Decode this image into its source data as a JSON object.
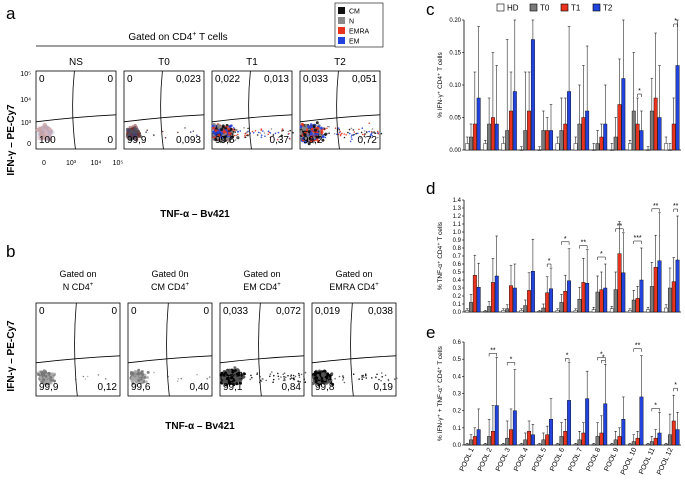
{
  "panels": {
    "a": {
      "letter": "a",
      "header": "Gated on CD4",
      "header_sup": "+",
      "header_tail": " T cells",
      "legend": [
        {
          "label": "CM",
          "color": "#111111"
        },
        {
          "label": "N",
          "color": "#8a8a8a"
        },
        {
          "label": "EMRA",
          "color": "#e8331f"
        },
        {
          "label": "EM",
          "color": "#2244dd"
        }
      ],
      "ylabel": "IFN-γ – PE-Cy7",
      "xlabel": "TNF-α – Bv421",
      "ytick_labels": [
        "10⁵",
        "10⁴",
        "10³",
        "0"
      ],
      "xtick_labels": [
        "0",
        "10³",
        "10⁴",
        "10⁵"
      ],
      "plots": [
        {
          "title": "NS",
          "ul": "0",
          "ur": "0",
          "ll": "100",
          "lr": "0"
        },
        {
          "title": "T0",
          "ul": "0",
          "ur": "0,023",
          "ll": "99,9",
          "lr": "0,093"
        },
        {
          "title": "T1",
          "ul": "0,022",
          "ur": "0,013",
          "ll": "99,6",
          "lr": "0,37"
        },
        {
          "title": "T2",
          "ul": "0,033",
          "ur": "0,051",
          "ll": "99,2",
          "lr": "0,72"
        }
      ]
    },
    "b": {
      "letter": "b",
      "ylabel": "IFN-γ – PE-Cy7",
      "xlabel": "TNF-α – Bv421",
      "plots": [
        {
          "title1": "Gated on",
          "title2": "N CD4",
          "sup": "+",
          "ul": "0",
          "ur": "0",
          "ll": "99,9",
          "lr": "0,12"
        },
        {
          "title1": "Gated 0n",
          "title2": "CM CD4",
          "sup": "+",
          "ul": "0",
          "ur": "0",
          "ll": "99,6",
          "lr": "0,40"
        },
        {
          "title1": "Gated on",
          "title2": "EM CD4",
          "sup": "+",
          "ul": "0,033",
          "ur": "0,072",
          "ll": "99,1",
          "lr": "0,84"
        },
        {
          "title1": "Gated on",
          "title2": "EMRA CD4",
          "sup": "+",
          "ul": "0,019",
          "ur": "0,038",
          "ll": "99,8",
          "lr": "0,19"
        }
      ]
    },
    "c": {
      "letter": "c",
      "ylabel": "% IFN-γ⁺ CD4⁺ T cells"
    },
    "d": {
      "letter": "d",
      "ylabel": "% TNF-α⁺ CD4⁺ T cells"
    },
    "e": {
      "letter": "e",
      "ylabel": "% IFN-γ⁺ + TNF-α⁺ CD4⁺ T cells"
    }
  },
  "chart_data": [
    {
      "id": "c",
      "type": "bar",
      "title": "",
      "ylabel": "% IFN-γ⁺ CD4⁺ T cells",
      "ylim": [
        0,
        0.2
      ],
      "yticks": [
        "0.00",
        "0.05",
        "0.10",
        "0.15",
        "0.20"
      ],
      "categories": [
        "POOL 1",
        "POOL 2",
        "POOL 3",
        "POOL 4",
        "POOL 5",
        "POOL 6",
        "POOL 7",
        "POOL 8",
        "POOL 9",
        "POOL 10",
        "POOL 11",
        "POOL 12"
      ],
      "legend": [
        "HD",
        "T0",
        "T1",
        "T2"
      ],
      "series": [
        {
          "name": "HD",
          "color": "#ffffff",
          "values": [
            0.01,
            0.01,
            0.01,
            0.0,
            0.0,
            0.01,
            0.01,
            0.0,
            0.0,
            0.01,
            0.0,
            0.01
          ]
        },
        {
          "name": "T0",
          "color": "#7a7a7a",
          "values": [
            0.02,
            0.04,
            0.03,
            0.03,
            0.03,
            0.03,
            0.04,
            0.01,
            0.02,
            0.06,
            0.06,
            0.0
          ]
        },
        {
          "name": "T1",
          "color": "#e8331f",
          "values": [
            0.04,
            0.05,
            0.06,
            0.06,
            0.03,
            0.04,
            0.05,
            0.02,
            0.07,
            0.04,
            0.08,
            0.04
          ]
        },
        {
          "name": "T2",
          "color": "#2244dd",
          "values": [
            0.08,
            0.04,
            0.09,
            0.17,
            0.03,
            0.09,
            0.06,
            0.04,
            0.11,
            0.03,
            0.05,
            0.13
          ]
        }
      ],
      "errors": [
        {
          "name": "HD",
          "values": [
            0.01,
            0.005,
            0.01,
            0.005,
            0.005,
            0.01,
            0.01,
            0.01,
            0.01,
            0.005,
            0.005,
            0.01
          ]
        },
        {
          "name": "T0",
          "values": [
            0.02,
            0.04,
            0.14,
            0.09,
            0.03,
            0.05,
            0.06,
            0.02,
            0.03,
            0.09,
            0.05,
            0.01
          ]
        },
        {
          "name": "T1",
          "values": [
            0.08,
            0.1,
            0.06,
            0.06,
            0.02,
            0.04,
            0.08,
            0.02,
            0.07,
            0.04,
            0.1,
            0.04
          ]
        },
        {
          "name": "T2",
          "values": [
            0.11,
            0.09,
            0.12,
            0.09,
            0.04,
            0.1,
            0.1,
            0.06,
            0.11,
            0.03,
            0.08,
            0.1
          ]
        }
      ],
      "significance": [
        {
          "pool": 10,
          "from": "T1",
          "to": "T2",
          "label": "*"
        },
        {
          "pool": 12,
          "from": "T1",
          "to": "T2",
          "label": "*"
        }
      ]
    },
    {
      "id": "d",
      "type": "bar",
      "title": "",
      "ylabel": "% TNF-α⁺ CD4⁺ T cells",
      "ylim": [
        0,
        1.4
      ],
      "yticks": [
        "0.0",
        "0.1",
        "0.2",
        "0.3",
        "0.4",
        "0.5",
        "0.6",
        "0.7",
        "0.8",
        "0.9",
        "1.0",
        "1.1",
        "1.2",
        "1.3",
        "1.4"
      ],
      "categories": [
        "POOL 1",
        "POOL 2",
        "POOL 3",
        "POOL 4",
        "POOL 5",
        "POOL 6",
        "POOL 7",
        "POOL 8",
        "POOL 9",
        "POOL 10",
        "POOL 11",
        "POOL 12"
      ],
      "legend": [
        "HD",
        "T0",
        "T1",
        "T2"
      ],
      "series": [
        {
          "name": "HD",
          "color": "#ffffff",
          "values": [
            0.02,
            0.01,
            0.02,
            0.02,
            0.01,
            0.02,
            0.02,
            0.03,
            0.04,
            0.02,
            0.03,
            0.05
          ]
        },
        {
          "name": "T0",
          "color": "#7a7a7a",
          "values": [
            0.12,
            0.07,
            0.04,
            0.08,
            0.05,
            0.12,
            0.16,
            0.25,
            0.28,
            0.15,
            0.32,
            0.3
          ]
        },
        {
          "name": "T1",
          "color": "#e8331f",
          "values": [
            0.46,
            0.37,
            0.33,
            0.27,
            0.24,
            0.26,
            0.37,
            0.28,
            0.73,
            0.17,
            0.56,
            0.38
          ]
        },
        {
          "name": "T2",
          "color": "#2244dd",
          "values": [
            0.31,
            0.45,
            0.3,
            0.51,
            0.29,
            0.39,
            0.36,
            0.3,
            0.49,
            0.4,
            0.64,
            0.65
          ]
        }
      ],
      "errors": [
        {
          "name": "HD",
          "values": [
            0.02,
            0.01,
            0.02,
            0.02,
            0.01,
            0.02,
            0.02,
            0.03,
            0.03,
            0.02,
            0.03,
            0.04
          ]
        },
        {
          "name": "T0",
          "values": [
            0.1,
            0.06,
            0.05,
            0.07,
            0.05,
            0.1,
            0.15,
            0.2,
            0.22,
            0.12,
            0.3,
            0.25
          ]
        },
        {
          "name": "T1",
          "values": [
            0.25,
            0.3,
            0.25,
            0.22,
            0.2,
            0.2,
            0.3,
            0.22,
            0.4,
            0.15,
            0.4,
            0.3
          ]
        },
        {
          "name": "T2",
          "values": [
            0.3,
            0.5,
            0.3,
            0.4,
            0.26,
            0.4,
            0.42,
            0.3,
            0.5,
            0.4,
            0.6,
            0.55
          ]
        }
      ],
      "significance": [
        {
          "pool": 5,
          "from": "T1",
          "to": "T2",
          "label": "*"
        },
        {
          "pool": 6,
          "from": "T0",
          "to": "T2",
          "label": "*"
        },
        {
          "pool": 7,
          "from": "T0",
          "to": "T2",
          "label": "**"
        },
        {
          "pool": 8,
          "from": "T0",
          "to": "T2",
          "label": "*"
        },
        {
          "pool": 9,
          "from": "T0",
          "to": "T2",
          "label": "**"
        },
        {
          "pool": 10,
          "from": "T0",
          "to": "T2",
          "label": "***"
        },
        {
          "pool": 11,
          "from": "T0",
          "to": "T2",
          "label": "**"
        },
        {
          "pool": 12,
          "from": "T1",
          "to": "T2",
          "label": "**"
        }
      ]
    },
    {
      "id": "e",
      "type": "bar",
      "title": "",
      "ylabel": "% IFN-γ⁺ + TNF-α⁺ CD4⁺ T cells",
      "ylim": [
        0,
        0.6
      ],
      "yticks": [
        "0.0",
        "0.1",
        "0.2",
        "0.3",
        "0.4",
        "0.5",
        "0.6"
      ],
      "categories": [
        "POOL 1",
        "POOL 2",
        "POOL 3",
        "POOL 4",
        "POOL 5",
        "POOL 6",
        "POOL 7",
        "POOL 8",
        "POOL 9",
        "POOL 10",
        "POOL 11",
        "POOL 12"
      ],
      "legend": [
        "HD",
        "T0",
        "T1",
        "T2"
      ],
      "series": [
        {
          "name": "HD",
          "color": "#ffffff",
          "values": [
            0.005,
            0.005,
            0.005,
            0.005,
            0.005,
            0.005,
            0.005,
            0.005,
            0.005,
            0.005,
            0.005,
            0.005
          ]
        },
        {
          "name": "T0",
          "color": "#7a7a7a",
          "values": [
            0.03,
            0.05,
            0.04,
            0.03,
            0.03,
            0.05,
            0.03,
            0.05,
            0.03,
            0.02,
            0.02,
            0.06
          ]
        },
        {
          "name": "T1",
          "color": "#e8331f",
          "values": [
            0.05,
            0.08,
            0.09,
            0.08,
            0.06,
            0.08,
            0.07,
            0.07,
            0.05,
            0.04,
            0.04,
            0.14
          ]
        },
        {
          "name": "T2",
          "color": "#2244dd",
          "values": [
            0.09,
            0.23,
            0.2,
            0.06,
            0.15,
            0.26,
            0.27,
            0.24,
            0.15,
            0.28,
            0.07,
            0.09
          ]
        }
      ],
      "errors": [
        {
          "name": "HD",
          "values": [
            0.005,
            0.005,
            0.005,
            0.005,
            0.005,
            0.005,
            0.005,
            0.005,
            0.005,
            0.005,
            0.005,
            0.005
          ]
        },
        {
          "name": "T0",
          "values": [
            0.03,
            0.1,
            0.1,
            0.04,
            0.04,
            0.08,
            0.05,
            0.08,
            0.05,
            0.04,
            0.03,
            0.12
          ]
        },
        {
          "name": "T1",
          "values": [
            0.05,
            0.15,
            0.12,
            0.06,
            0.05,
            0.07,
            0.06,
            0.1,
            0.05,
            0.04,
            0.05,
            0.15
          ]
        },
        {
          "name": "T2",
          "values": [
            0.12,
            0.28,
            0.24,
            0.06,
            0.12,
            0.22,
            0.16,
            0.23,
            0.13,
            0.24,
            0.12,
            0.1
          ]
        }
      ],
      "significance": [
        {
          "pool": 2,
          "from": "T0",
          "to": "T2",
          "label": "**"
        },
        {
          "pool": 3,
          "from": "T0",
          "to": "T2",
          "label": "*"
        },
        {
          "pool": 6,
          "from": "T1",
          "to": "T2",
          "label": "*"
        },
        {
          "pool": 8,
          "from": "T0",
          "to": "T2",
          "label": "*"
        },
        {
          "pool": 8,
          "from": "T1",
          "to": "T2",
          "label": "*"
        },
        {
          "pool": 10,
          "from": "T0",
          "to": "T2",
          "label": "**"
        },
        {
          "pool": 11,
          "from": "T0",
          "to": "T2",
          "label": "*"
        },
        {
          "pool": 12,
          "from": "T1",
          "to": "T2",
          "label": "*"
        }
      ]
    }
  ]
}
